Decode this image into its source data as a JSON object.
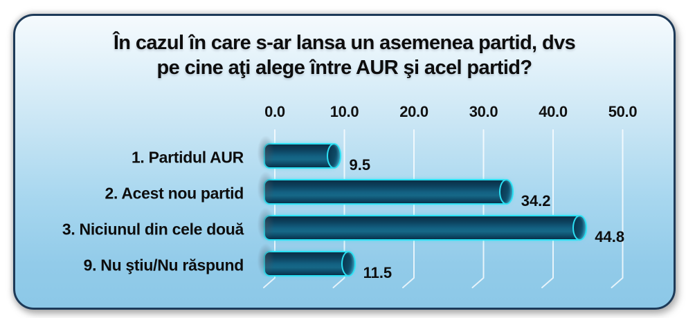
{
  "chart_data": {
    "type": "bar",
    "orientation": "horizontal",
    "bar_style": "3d-cylinder",
    "title": "În cazul în care s-ar lansa un asemenea partid, dvs pe cine aţi alege între AUR şi acel partid?",
    "title_lines": [
      "În cazul în care s-ar lansa un asemenea partid, dvs",
      "pe cine aţi alege între AUR şi acel partid?"
    ],
    "categories": [
      "1. Partidul AUR",
      "2. Acest nou partid",
      "3. Niciunul din cele două",
      "9. Nu ştiu/Nu răspund"
    ],
    "values": [
      9.5,
      34.2,
      44.8,
      11.5
    ],
    "value_labels": [
      "9.5",
      "34.2",
      "44.8",
      "11.5"
    ],
    "x_ticks": [
      {
        "label": "0.0",
        "value": 0
      },
      {
        "label": "10.0",
        "value": 10
      },
      {
        "label": "20.0",
        "value": 20
      },
      {
        "label": "30.0",
        "value": 30
      },
      {
        "label": "40.0",
        "value": 40
      },
      {
        "label": "50.0",
        "value": 50
      }
    ],
    "xlim": [
      0,
      50
    ],
    "axis_position": "top",
    "grid": true,
    "legend": "none",
    "colors": {
      "bar_fill_dark": "#0a3048",
      "bar_fill_light": "#166887",
      "bar_outline": "#2be1f4",
      "panel_border": "#1d3a58",
      "panel_bg_top": "#f5fafd",
      "panel_bg_bottom": "#8cc8e7",
      "gridline": "#ffffff",
      "text": "#0d0d0d"
    }
  }
}
